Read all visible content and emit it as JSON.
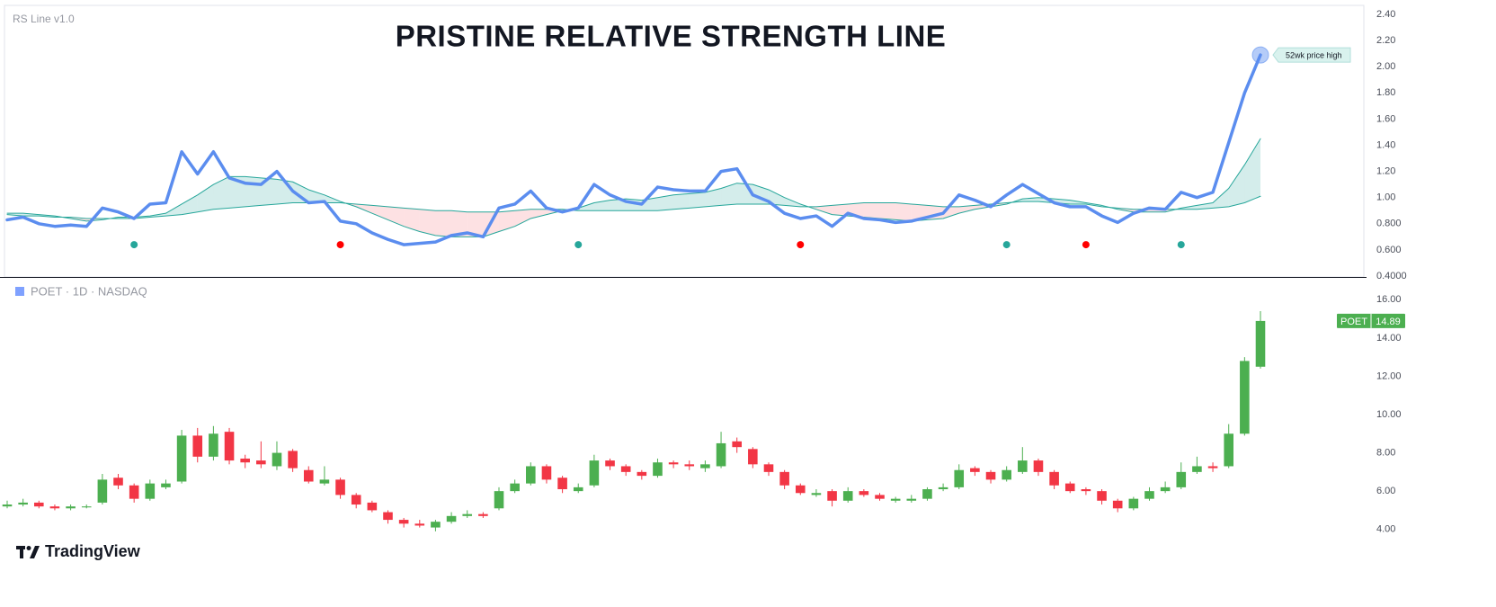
{
  "chart_data": [
    {
      "type": "line",
      "title": "PRISTINE RELATIVE STRENGTH LINE",
      "label": "RS Line v1.0",
      "annotation": "52wk price high",
      "ylim": [
        0.4,
        2.4
      ],
      "yticks": [
        {
          "value": 2.4,
          "label": "2.40"
        },
        {
          "value": 2.2,
          "label": "2.20"
        },
        {
          "value": 2.0,
          "label": "2.00"
        },
        {
          "value": 1.8,
          "label": "1.80"
        },
        {
          "value": 1.6,
          "label": "1.60"
        },
        {
          "value": 1.4,
          "label": "1.40"
        },
        {
          "value": 1.2,
          "label": "1.20"
        },
        {
          "value": 1.0,
          "label": "1.00"
        },
        {
          "value": 0.8,
          "label": "0.800"
        },
        {
          "value": 0.6,
          "label": "0.600"
        },
        {
          "value": 0.4,
          "label": "0.4000"
        }
      ],
      "fill_up_color": "rgba(38,166,154,0.2)",
      "fill_down_color": "rgba(242,54,69,0.15)",
      "series": [
        {
          "color": "#5b8def",
          "line_width": 3.5,
          "values": [
            0.83,
            0.85,
            0.8,
            0.78,
            0.79,
            0.78,
            0.92,
            0.89,
            0.84,
            0.95,
            0.96,
            1.35,
            1.18,
            1.35,
            1.15,
            1.11,
            1.1,
            1.2,
            1.05,
            0.96,
            0.97,
            0.82,
            0.8,
            0.73,
            0.68,
            0.64,
            0.65,
            0.66,
            0.71,
            0.73,
            0.7,
            0.92,
            0.95,
            1.05,
            0.92,
            0.89,
            0.92,
            1.1,
            1.02,
            0.97,
            0.95,
            1.08,
            1.06,
            1.05,
            1.05,
            1.2,
            1.22,
            1.02,
            0.97,
            0.88,
            0.84,
            0.86,
            0.78,
            0.88,
            0.84,
            0.83,
            0.81,
            0.82,
            0.85,
            0.88,
            1.02,
            0.98,
            0.93,
            1.02,
            1.1,
            1.03,
            0.96,
            0.93,
            0.93,
            0.86,
            0.81,
            0.88,
            0.92,
            0.91,
            1.04,
            1.0,
            1.04,
            1.42,
            1.8,
            2.09
          ]
        },
        {
          "color": "#26a69a",
          "line_width": 1,
          "values": [
            0.88,
            0.88,
            0.87,
            0.86,
            0.84,
            0.82,
            0.83,
            0.85,
            0.85,
            0.86,
            0.88,
            0.95,
            1.02,
            1.1,
            1.16,
            1.16,
            1.15,
            1.14,
            1.12,
            1.06,
            1.02,
            0.97,
            0.93,
            0.88,
            0.83,
            0.78,
            0.74,
            0.71,
            0.7,
            0.7,
            0.7,
            0.74,
            0.78,
            0.84,
            0.87,
            0.9,
            0.92,
            0.96,
            0.98,
            0.99,
            0.98,
            1.0,
            1.02,
            1.03,
            1.04,
            1.07,
            1.11,
            1.1,
            1.06,
            1.0,
            0.95,
            0.91,
            0.87,
            0.86,
            0.85,
            0.84,
            0.83,
            0.82,
            0.83,
            0.84,
            0.88,
            0.91,
            0.93,
            0.95,
            0.99,
            1.0,
            0.99,
            0.98,
            0.96,
            0.94,
            0.91,
            0.89,
            0.89,
            0.89,
            0.92,
            0.94,
            0.96,
            1.07,
            1.25,
            1.45
          ]
        },
        {
          "color": "#26a69a",
          "line_width": 1,
          "values": [
            0.87,
            0.86,
            0.86,
            0.85,
            0.85,
            0.84,
            0.84,
            0.84,
            0.84,
            0.85,
            0.86,
            0.87,
            0.89,
            0.91,
            0.92,
            0.93,
            0.94,
            0.95,
            0.96,
            0.96,
            0.96,
            0.96,
            0.95,
            0.94,
            0.93,
            0.92,
            0.91,
            0.9,
            0.9,
            0.89,
            0.89,
            0.89,
            0.9,
            0.91,
            0.91,
            0.91,
            0.9,
            0.9,
            0.9,
            0.9,
            0.9,
            0.9,
            0.91,
            0.92,
            0.93,
            0.94,
            0.95,
            0.95,
            0.95,
            0.94,
            0.93,
            0.93,
            0.94,
            0.95,
            0.96,
            0.96,
            0.96,
            0.95,
            0.94,
            0.93,
            0.93,
            0.94,
            0.95,
            0.96,
            0.97,
            0.97,
            0.96,
            0.95,
            0.95,
            0.93,
            0.92,
            0.91,
            0.91,
            0.91,
            0.91,
            0.91,
            0.92,
            0.93,
            0.96,
            1.01
          ]
        }
      ],
      "signals": [
        {
          "index": 8,
          "value": 0.64,
          "color": "#26a69a"
        },
        {
          "index": 21,
          "value": 0.64,
          "color": "#ff0000"
        },
        {
          "index": 36,
          "value": 0.64,
          "color": "#26a69a"
        },
        {
          "index": 50,
          "value": 0.64,
          "color": "#ff0000"
        },
        {
          "index": 63,
          "value": 0.64,
          "color": "#26a69a"
        },
        {
          "index": 68,
          "value": 0.64,
          "color": "#ff0000"
        },
        {
          "index": 74,
          "value": 0.64,
          "color": "#26a69a"
        }
      ]
    },
    {
      "type": "candlestick",
      "title": "POET · 1D · NASDAQ",
      "symbol": "POET",
      "ylim": [
        3,
        17
      ],
      "yticks": [
        {
          "value": 16,
          "label": "16.00"
        },
        {
          "value": 14,
          "label": "14.00"
        },
        {
          "value": 12,
          "label": "12.00"
        },
        {
          "value": 10,
          "label": "10.00"
        },
        {
          "value": 8,
          "label": "8.00"
        },
        {
          "value": 6,
          "label": "6.00"
        },
        {
          "value": 4,
          "label": "4.00"
        }
      ],
      "up_color": "#4caf50",
      "down_color": "#f23645",
      "open": [
        5.2,
        5.3,
        5.4,
        5.2,
        5.1,
        5.15,
        5.4,
        6.7,
        6.3,
        5.6,
        6.2,
        6.5,
        8.9,
        7.8,
        9.1,
        7.7,
        7.6,
        7.3,
        8.1,
        7.1,
        6.4,
        6.6,
        5.8,
        5.4,
        4.9,
        4.5,
        4.3,
        4.1,
        4.4,
        4.7,
        4.8,
        5.1,
        6.0,
        6.4,
        7.3,
        6.7,
        6.0,
        6.3,
        7.6,
        7.3,
        7.0,
        6.8,
        7.5,
        7.4,
        7.2,
        7.3,
        8.6,
        8.2,
        7.4,
        7.0,
        6.3,
        5.8,
        6.0,
        5.5,
        6.0,
        5.8,
        5.5,
        5.5,
        5.6,
        6.1,
        6.2,
        7.2,
        7.0,
        6.6,
        7.0,
        7.6,
        7.0,
        6.4,
        6.1,
        6.0,
        5.5,
        5.1,
        5.6,
        6.0,
        6.2,
        7.0,
        7.3,
        7.3,
        9.0,
        12.5
      ],
      "high": [
        5.5,
        5.6,
        5.5,
        5.3,
        5.3,
        5.3,
        6.9,
        6.9,
        6.4,
        6.6,
        6.6,
        9.2,
        9.3,
        9.4,
        9.3,
        7.9,
        8.6,
        8.6,
        8.2,
        7.3,
        7.3,
        6.7,
        5.9,
        5.5,
        5.0,
        4.6,
        4.5,
        4.5,
        4.9,
        5.0,
        4.9,
        6.2,
        6.6,
        7.5,
        7.4,
        6.8,
        6.4,
        7.9,
        7.7,
        7.4,
        7.1,
        7.7,
        7.6,
        7.6,
        7.6,
        9.1,
        8.8,
        8.3,
        7.5,
        7.1,
        6.4,
        6.1,
        6.1,
        6.2,
        6.1,
        5.9,
        5.7,
        5.8,
        6.2,
        6.4,
        7.4,
        7.3,
        7.1,
        7.3,
        8.3,
        7.7,
        7.1,
        6.5,
        6.2,
        6.1,
        5.6,
        5.7,
        6.2,
        6.5,
        7.5,
        7.8,
        7.5,
        9.5,
        13.0,
        15.4
      ],
      "low": [
        5.1,
        5.2,
        5.1,
        5.0,
        5.0,
        5.1,
        5.3,
        6.1,
        5.4,
        5.5,
        6.1,
        6.4,
        7.5,
        7.6,
        7.4,
        7.2,
        7.2,
        7.1,
        7.0,
        6.4,
        6.3,
        5.6,
        5.1,
        4.9,
        4.3,
        4.1,
        4.1,
        3.9,
        4.3,
        4.6,
        4.6,
        5.0,
        5.9,
        6.3,
        6.4,
        5.9,
        5.9,
        6.2,
        7.1,
        6.8,
        6.6,
        6.7,
        7.2,
        7.1,
        7.0,
        7.2,
        8.0,
        7.2,
        6.8,
        6.1,
        5.8,
        5.7,
        5.2,
        5.4,
        5.7,
        5.5,
        5.4,
        5.4,
        5.5,
        6.0,
        6.1,
        6.8,
        6.4,
        6.5,
        6.9,
        6.8,
        6.1,
        5.9,
        5.8,
        5.3,
        4.9,
        5.0,
        5.5,
        5.9,
        6.1,
        6.9,
        7.0,
        7.2,
        8.9,
        12.4
      ],
      "close": [
        5.3,
        5.4,
        5.2,
        5.1,
        5.2,
        5.2,
        6.6,
        6.3,
        5.6,
        6.4,
        6.4,
        8.9,
        7.8,
        9.0,
        7.6,
        7.5,
        7.4,
        8.0,
        7.2,
        6.5,
        6.6,
        5.8,
        5.3,
        5.0,
        4.5,
        4.3,
        4.2,
        4.4,
        4.7,
        4.8,
        4.7,
        6.0,
        6.4,
        7.3,
        6.6,
        6.1,
        6.2,
        7.6,
        7.3,
        7.0,
        6.8,
        7.5,
        7.4,
        7.3,
        7.4,
        8.5,
        8.3,
        7.4,
        7.0,
        6.3,
        5.9,
        5.9,
        5.5,
        6.0,
        5.8,
        5.6,
        5.6,
        5.6,
        6.1,
        6.2,
        7.1,
        7.0,
        6.6,
        7.1,
        7.6,
        7.0,
        6.3,
        6.0,
        6.0,
        5.5,
        5.1,
        5.6,
        6.0,
        6.2,
        7.0,
        7.3,
        7.2,
        9.0,
        12.8,
        14.89
      ]
    }
  ],
  "branding": "TradingView"
}
